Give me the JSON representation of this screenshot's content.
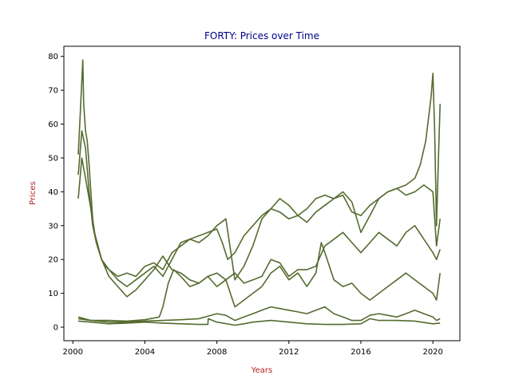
{
  "chart_data": {
    "type": "line",
    "title": "FORTY: Prices over Time",
    "xlabel": "Years",
    "ylabel": "Prices",
    "xlim": [
      1999.5,
      2021.5
    ],
    "ylim": [
      -4,
      83
    ],
    "x_ticks": [
      2000,
      2004,
      2008,
      2012,
      2016,
      2020
    ],
    "x_tick_labels": [
      "2000",
      "2004",
      "2008",
      "2012",
      "2016",
      "2020"
    ],
    "y_ticks": [
      0,
      10,
      20,
      30,
      40,
      50,
      60,
      70,
      80
    ],
    "y_tick_labels": [
      "0",
      "10",
      "20",
      "30",
      "40",
      "50",
      "60",
      "70",
      "80"
    ],
    "grid": false,
    "legend": "none",
    "colors": {
      "line": "#556b2f",
      "title": "#00008b",
      "axis_label": "#b22222"
    },
    "series": [
      {
        "x": [
          2000.3,
          2000.4,
          2000.5,
          2000.55,
          2000.6,
          2000.7,
          2000.8,
          2000.9,
          2001.0,
          2001.1,
          2001.2,
          2001.4,
          2001.6,
          2001.8,
          2002.0,
          2002.5,
          2003.0,
          2003.5,
          2004.0,
          2004.5,
          2005.0,
          2005.5,
          2006.0,
          2006.5,
          2007.0,
          2007.5,
          2008.0,
          2008.3,
          2008.6,
          2009.0,
          2009.5,
          2010.0,
          2010.5,
          2011.0,
          2011.5,
          2012.0,
          2012.5,
          2013.0,
          2013.5,
          2014.0,
          2014.5,
          2015.0,
          2015.5,
          2016.0,
          2016.5,
          2017.0,
          2017.5,
          2018.0,
          2018.5,
          2019.0,
          2019.3,
          2019.6,
          2019.9,
          2020.0,
          2020.1,
          2020.2,
          2020.3,
          2020.4
        ],
        "y": [
          51,
          62,
          73,
          79,
          66,
          58,
          55,
          48,
          40,
          32,
          28,
          24,
          20,
          18,
          17,
          15,
          16,
          15,
          18,
          19,
          17,
          22,
          24,
          26,
          27,
          28,
          29,
          25,
          20,
          22,
          27,
          30,
          33,
          35,
          34,
          32,
          33,
          31,
          34,
          36,
          38,
          39,
          34,
          33,
          36,
          38,
          40,
          41,
          42,
          44,
          48,
          55,
          68,
          75,
          58,
          30,
          48,
          66
        ]
      },
      {
        "x": [
          2000.3,
          2000.5,
          2000.7,
          2000.9,
          2001.1,
          2001.3,
          2001.6,
          2002.0,
          2002.5,
          2003.0,
          2003.5,
          2004.0,
          2004.5,
          2005.0,
          2005.5,
          2006.0,
          2006.5,
          2007.0,
          2007.5,
          2008.0,
          2008.5,
          2009.0,
          2009.5,
          2010.0,
          2010.5,
          2011.0,
          2011.5,
          2012.0,
          2012.5,
          2013.0,
          2013.5,
          2014.0,
          2014.5,
          2015.0,
          2015.5,
          2016.0,
          2016.5,
          2017.0,
          2017.5,
          2018.0,
          2018.5,
          2019.0,
          2019.5,
          2020.0,
          2020.2,
          2020.4
        ],
        "y": [
          45,
          58,
          53,
          40,
          30,
          25,
          20,
          17,
          14,
          12,
          14,
          16,
          18,
          15,
          20,
          25,
          26,
          25,
          27,
          30,
          32,
          14,
          18,
          24,
          32,
          35,
          38,
          36,
          33,
          35,
          38,
          39,
          38,
          40,
          37,
          28,
          33,
          38,
          40,
          41,
          39,
          40,
          42,
          40,
          24,
          32
        ]
      },
      {
        "x": [
          2000.3,
          2000.5,
          2000.7,
          2001.0,
          2001.3,
          2001.6,
          2002.0,
          2002.5,
          2003.0,
          2003.5,
          2004.0,
          2004.5,
          2005.0,
          2005.5,
          2006.0,
          2006.5,
          2007.0,
          2007.5,
          2008.0,
          2008.5,
          2009.0,
          2009.5,
          2010.0,
          2010.5,
          2011.0,
          2011.5,
          2012.0,
          2012.5,
          2013.0,
          2013.5,
          2014.0,
          2014.5,
          2015.0,
          2015.5,
          2016.0,
          2016.5,
          2017.0,
          2017.5,
          2018.0,
          2018.5,
          2019.0,
          2019.5,
          2020.0,
          2020.2,
          2020.4
        ],
        "y": [
          38,
          50,
          44,
          35,
          25,
          20,
          15,
          12,
          9,
          11,
          14,
          17,
          21,
          17,
          16,
          14,
          13,
          15,
          12,
          14,
          16,
          13,
          14,
          15,
          20,
          19,
          15,
          17,
          17,
          18,
          24,
          26,
          28,
          25,
          22,
          25,
          28,
          26,
          24,
          28,
          30,
          26,
          22,
          20,
          23
        ]
      },
      {
        "x": [
          2000.3,
          2001.0,
          2002.0,
          2003.0,
          2004.0,
          2004.8,
          2005.0,
          2005.3,
          2005.6,
          2006.0,
          2006.5,
          2007.0,
          2007.5,
          2008.0,
          2008.5,
          2009.0,
          2009.5,
          2010.0,
          2010.5,
          2011.0,
          2011.5,
          2012.0,
          2012.5,
          2013.0,
          2013.5,
          2013.8,
          2014.0,
          2014.5,
          2015.0,
          2015.5,
          2016.0,
          2016.5,
          2017.0,
          2017.5,
          2018.0,
          2018.5,
          2019.0,
          2019.5,
          2020.0,
          2020.2,
          2020.4
        ],
        "y": [
          2.5,
          2.0,
          2.0,
          1.8,
          2.2,
          3.0,
          6.0,
          13,
          17,
          15,
          12,
          13,
          15,
          16,
          14,
          6,
          8,
          10,
          12,
          16,
          18,
          14,
          16,
          12,
          16,
          25,
          22,
          14,
          12,
          13,
          10,
          8,
          10,
          12,
          14,
          16,
          14,
          12,
          10,
          8,
          16
        ]
      },
      {
        "x": [
          2000.3,
          2001.0,
          2002.0,
          2003.0,
          2004.0,
          2005.0,
          2006.0,
          2007.0,
          2008.0,
          2008.5,
          2009.0,
          2009.5,
          2010.0,
          2010.5,
          2011.0,
          2011.5,
          2012.0,
          2012.5,
          2013.0,
          2013.5,
          2014.0,
          2014.5,
          2015.0,
          2015.5,
          2016.0,
          2016.5,
          2017.0,
          2017.5,
          2018.0,
          2018.5,
          2019.0,
          2019.5,
          2020.0,
          2020.2,
          2020.4
        ],
        "y": [
          3.0,
          2.0,
          1.5,
          1.5,
          1.8,
          2.0,
          2.2,
          2.5,
          4.0,
          3.5,
          2.0,
          3.0,
          4.0,
          5.0,
          6.0,
          5.5,
          5.0,
          4.5,
          4.0,
          5.0,
          6.0,
          4.0,
          3.0,
          2.0,
          2.0,
          3.5,
          4.0,
          3.5,
          3.0,
          4.0,
          5.0,
          4.0,
          3.0,
          2.0,
          2.5
        ]
      },
      {
        "x": [
          2000.3,
          2001.0,
          2002.0,
          2003.0,
          2004.0,
          2005.0,
          2006.0,
          2007.0,
          2007.5,
          2007.52,
          2008.0,
          2009.0,
          2009.5,
          2010.0,
          2011.0,
          2012.0,
          2013.0,
          2014.0,
          2015.0,
          2016.0,
          2016.5,
          2017.0,
          2018.0,
          2019.0,
          2020.0,
          2020.4
        ],
        "y": [
          1.8,
          1.5,
          1.0,
          1.2,
          1.5,
          1.2,
          1.0,
          0.8,
          0.8,
          2.5,
          1.5,
          0.6,
          1.0,
          1.5,
          2.0,
          1.5,
          1.0,
          0.8,
          0.8,
          1.0,
          2.5,
          2.0,
          2.0,
          1.8,
          1.0,
          1.2
        ]
      }
    ]
  }
}
